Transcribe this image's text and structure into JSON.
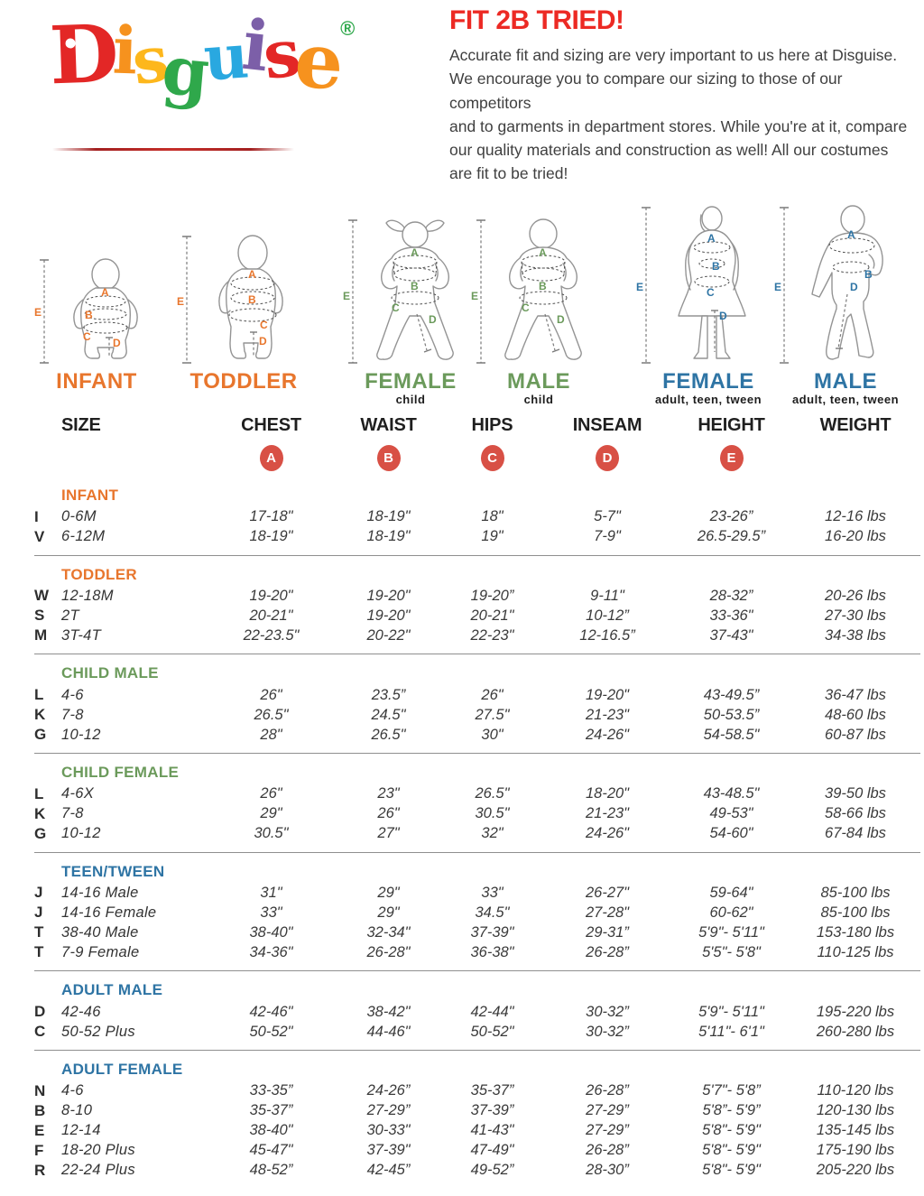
{
  "logo": {
    "letters": [
      {
        "ch": "D",
        "color": "#e32726"
      },
      {
        "ch": "i",
        "color": "#f6921e"
      },
      {
        "ch": "s",
        "color": "#fdb71c"
      },
      {
        "ch": "g",
        "color": "#2fa84b"
      },
      {
        "ch": "u",
        "color": "#29a8e0"
      },
      {
        "ch": "i",
        "color": "#7c5fa8"
      },
      {
        "ch": "s",
        "color": "#e32726"
      },
      {
        "ch": "e",
        "color": "#f6921e"
      }
    ],
    "registered": "®",
    "registered_color": "#2fa84b"
  },
  "intro": {
    "title": "FIT 2B TRIED!",
    "title_color": "#ec2a24",
    "lines": [
      "Accurate fit and sizing are very important to us here at Disguise.",
      "We encourage you to compare our sizing to those of our competitors",
      "and to garments in department stores. While you're at it, compare",
      "our quality materials and construction as well! All our costumes",
      "are fit to be tried!"
    ]
  },
  "figures": [
    {
      "id": "infant",
      "label": "INFANT",
      "sublabel": "",
      "color": "#e8762d",
      "marks": [
        "A",
        "B",
        "C",
        "D",
        "E"
      ]
    },
    {
      "id": "toddler",
      "label": "TODDLER",
      "sublabel": "",
      "color": "#e8762d",
      "marks": [
        "A",
        "B",
        "C",
        "D",
        "E"
      ]
    },
    {
      "id": "female-child",
      "label": "FEMALE",
      "sublabel": "child",
      "color": "#6b9a5b",
      "marks": [
        "A",
        "B",
        "C",
        "D",
        "E"
      ]
    },
    {
      "id": "male-child",
      "label": "MALE",
      "sublabel": "child",
      "color": "#6b9a5b",
      "marks": [
        "A",
        "B",
        "C",
        "D",
        "E"
      ]
    },
    {
      "id": "female-adult",
      "label": "FEMALE",
      "sublabel": "adult, teen, tween",
      "color": "#2e74a4",
      "marks": [
        "A",
        "B",
        "C",
        "D",
        "E"
      ]
    },
    {
      "id": "male-adult",
      "label": "MALE",
      "sublabel": "adult, teen, tween",
      "color": "#2e74a4",
      "marks": [
        "A",
        "B",
        "D",
        "E"
      ]
    }
  ],
  "table": {
    "columns": [
      "SIZE",
      "CHEST",
      "WAIST",
      "HIPS",
      "INSEAM",
      "HEIGHT",
      "WEIGHT"
    ],
    "badge_letters": [
      "A",
      "B",
      "C",
      "D",
      "E"
    ],
    "badge_color": "#d85045",
    "sections": [
      {
        "id": "infant",
        "label": "INFANT",
        "color": "#e8762d",
        "rows": [
          {
            "letter": "I",
            "size": "0-6M",
            "values": [
              "17-18\"",
              "18-19\"",
              "18\"",
              "5-7\"",
              "23-26”",
              "12-16 lbs"
            ]
          },
          {
            "letter": "V",
            "size": "6-12M",
            "values": [
              "18-19\"",
              "18-19\"",
              "19\"",
              "7-9\"",
              "26.5-29.5”",
              "16-20 lbs"
            ]
          }
        ]
      },
      {
        "id": "toddler",
        "label": "TODDLER",
        "color": "#e8762d",
        "rows": [
          {
            "letter": "W",
            "size": "12-18M",
            "values": [
              "19-20\"",
              "19-20\"",
              "19-20”",
              "9-11\"",
              "28-32”",
              "20-26 lbs"
            ]
          },
          {
            "letter": "S",
            "size": "2T",
            "values": [
              "20-21\"",
              "19-20\"",
              "20-21\"",
              "10-12”",
              "33-36\"",
              "27-30 lbs"
            ]
          },
          {
            "letter": "M",
            "size": "3T-4T",
            "values": [
              "22-23.5\"",
              "20-22\"",
              "22-23\"",
              "12-16.5”",
              "37-43\"",
              "34-38 lbs"
            ]
          }
        ]
      },
      {
        "id": "child-male",
        "label": "CHILD MALE",
        "color": "#6b9a5b",
        "rows": [
          {
            "letter": "L",
            "size": "4-6",
            "values": [
              "26\"",
              "23.5”",
              "26\"",
              "19-20\"",
              "43-49.5”",
              "36-47 lbs"
            ]
          },
          {
            "letter": "K",
            "size": "7-8",
            "values": [
              "26.5\"",
              "24.5\"",
              "27.5\"",
              "21-23\"",
              "50-53.5”",
              "48-60 lbs"
            ]
          },
          {
            "letter": "G",
            "size": "10-12",
            "values": [
              "28\"",
              "26.5\"",
              "30\"",
              "24-26\"",
              "54-58.5\"",
              "60-87 lbs"
            ]
          }
        ]
      },
      {
        "id": "child-female",
        "label": "CHILD FEMALE",
        "color": "#6b9a5b",
        "rows": [
          {
            "letter": "L",
            "size": "4-6X",
            "values": [
              "26\"",
              "23\"",
              "26.5\"",
              "18-20\"",
              "43-48.5\"",
              "39-50 lbs"
            ]
          },
          {
            "letter": "K",
            "size": "7-8",
            "values": [
              "29\"",
              "26\"",
              "30.5\"",
              "21-23\"",
              "49-53\"",
              "58-66 lbs"
            ]
          },
          {
            "letter": "G",
            "size": "10-12",
            "values": [
              "30.5\"",
              "27\"",
              "32\"",
              "24-26\"",
              "54-60\"",
              "67-84 lbs"
            ]
          }
        ]
      },
      {
        "id": "teen-tween",
        "label": "TEEN/TWEEN",
        "color": "#2e74a4",
        "rows": [
          {
            "letter": "J",
            "size": "14-16 Male",
            "values": [
              "31\"",
              "29\"",
              "33\"",
              "26-27\"",
              "59-64\"",
              "85-100 lbs"
            ]
          },
          {
            "letter": "J",
            "size": "14-16 Female",
            "values": [
              "33\"",
              "29\"",
              "34.5\"",
              "27-28\"",
              "60-62\"",
              "85-100 lbs"
            ]
          },
          {
            "letter": "T",
            "size": "38-40 Male",
            "values": [
              "38-40\"",
              "32-34\"",
              "37-39\"",
              "29-31”",
              "5'9\"- 5'11\"",
              "153-180 lbs"
            ]
          },
          {
            "letter": "T",
            "size": "7-9 Female",
            "values": [
              "34-36\"",
              "26-28\"",
              "36-38\"",
              "26-28”",
              "5'5\"- 5'8\"",
              "110-125 lbs"
            ]
          }
        ]
      },
      {
        "id": "adult-male",
        "label": "ADULT MALE",
        "color": "#2e74a4",
        "rows": [
          {
            "letter": "D",
            "size": "42-46",
            "values": [
              "42-46\"",
              "38-42\"",
              "42-44\"",
              "30-32”",
              "5'9\"- 5'11\"",
              "195-220 lbs"
            ]
          },
          {
            "letter": "C",
            "size": "50-52 Plus",
            "values": [
              "50-52\"",
              "44-46\"",
              "50-52\"",
              "30-32”",
              "5'11\"- 6'1\"",
              "260-280 lbs"
            ]
          }
        ]
      },
      {
        "id": "adult-female",
        "label": "ADULT FEMALE",
        "color": "#2e74a4",
        "rows": [
          {
            "letter": "N",
            "size": "4-6",
            "values": [
              "33-35”",
              "24-26”",
              "35-37”",
              "26-28”",
              "5'7\"- 5'8”",
              "110-120 lbs"
            ]
          },
          {
            "letter": "B",
            "size": "8-10",
            "values": [
              "35-37”",
              "27-29”",
              "37-39”",
              "27-29”",
              "5'8”- 5'9”",
              "120-130 lbs"
            ]
          },
          {
            "letter": "E",
            "size": "12-14",
            "values": [
              "38-40\"",
              "30-33\"",
              "41-43\"",
              "27-29”",
              "5'8\"- 5'9\"",
              "135-145 lbs"
            ]
          },
          {
            "letter": "F",
            "size": "18-20 Plus",
            "values": [
              "45-47\"",
              "37-39\"",
              "47-49\"",
              "26-28”",
              "5'8\"- 5'9\"",
              "175-190 lbs"
            ]
          },
          {
            "letter": "R",
            "size": "22-24 Plus",
            "values": [
              "48-52”",
              "42-45”",
              "49-52”",
              "28-30”",
              "5'8\"- 5'9\"",
              "205-220 lbs"
            ]
          }
        ]
      }
    ]
  }
}
